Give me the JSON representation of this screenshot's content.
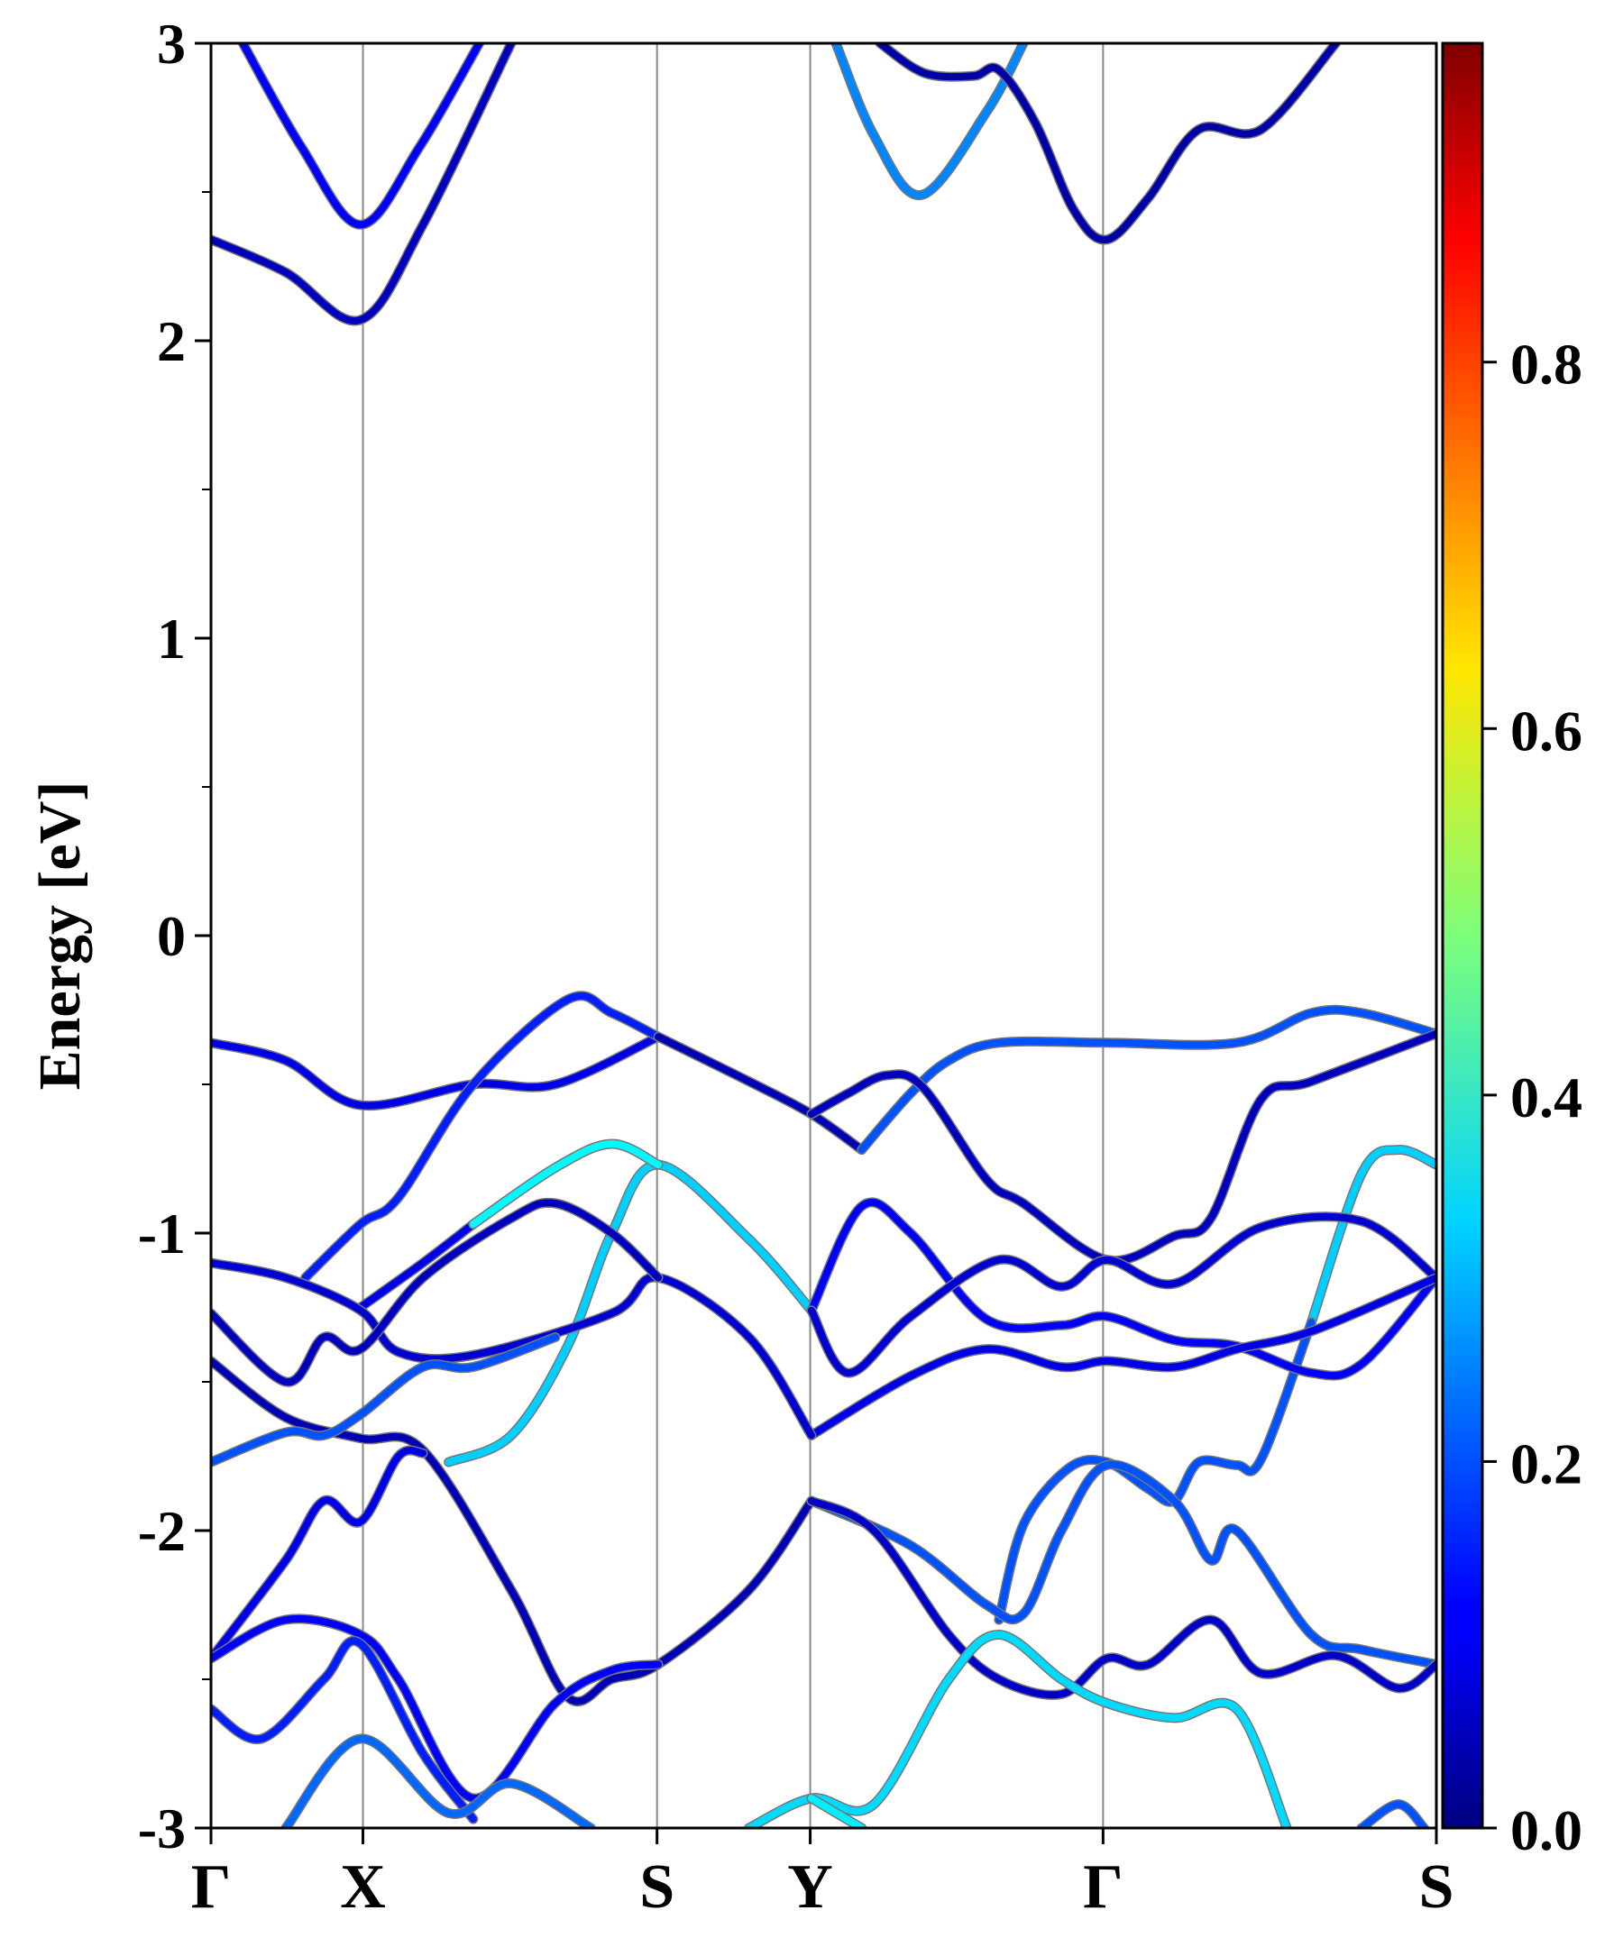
{
  "chart_data": {
    "type": "line",
    "title": "",
    "ylabel": "Energy [eV]",
    "ylim": [
      -3,
      3
    ],
    "yticks": [
      "-3",
      "-2",
      "-1",
      "0",
      "1",
      "2",
      "3"
    ],
    "ytick_values": [
      -3,
      -2,
      -1,
      0,
      1,
      2,
      3
    ],
    "kpoints": [
      {
        "label": "Γ",
        "k": 0
      },
      {
        "label": "X",
        "k": 0.124
      },
      {
        "label": "S",
        "k": 0.364
      },
      {
        "label": "Y",
        "k": 0.489
      },
      {
        "label": "Γ",
        "k": 0.728
      },
      {
        "label": "S",
        "k": 1.0
      }
    ],
    "colorbar": {
      "min": 0.0,
      "max": 0.974,
      "colormap": "jet",
      "ticks": [
        "0.0",
        "0.2",
        "0.4",
        "0.6",
        "0.8"
      ],
      "tick_values": [
        0,
        0.2,
        0.4,
        0.6,
        0.8
      ]
    },
    "bands": [
      {
        "w": 0.12,
        "pts": [
          [
            0.026,
            3
          ],
          [
            0.074,
            2.65
          ],
          [
            0.122,
            2.39
          ],
          [
            0.17,
            2.65
          ],
          [
            0.219,
            3
          ]
        ]
      },
      {
        "w": 0.06,
        "pts": [
          [
            0,
            2.34
          ],
          [
            0.061,
            2.23
          ],
          [
            0.122,
            2.07
          ],
          [
            0.173,
            2.39
          ],
          [
            0.245,
            3
          ]
        ]
      },
      {
        "w": 0.25,
        "pts": [
          [
            0.51,
            3
          ],
          [
            0.541,
            2.69
          ],
          [
            0.58,
            2.49
          ],
          [
            0.633,
            2.77
          ],
          [
            0.663,
            3
          ]
        ]
      },
      {
        "w": 0.04,
        "pts": [
          [
            0.546,
            3
          ],
          [
            0.582,
            2.9
          ],
          [
            0.622,
            2.89
          ],
          [
            0.643,
            2.91
          ],
          [
            0.673,
            2.73
          ],
          [
            0.704,
            2.44
          ],
          [
            0.731,
            2.34
          ],
          [
            0.765,
            2.48
          ],
          [
            0.806,
            2.71
          ],
          [
            0.857,
            2.71
          ],
          [
            0.918,
            3
          ]
        ]
      },
      {
        "w": 0.1,
        "pts": [
          [
            0,
            -0.36
          ],
          [
            0.061,
            -0.42
          ],
          [
            0.122,
            -0.57
          ],
          [
            0.214,
            -0.5
          ],
          [
            0.281,
            -0.5
          ],
          [
            0.365,
            -0.34
          ]
        ]
      },
      {
        "w": 0.15,
        "pts": [
          [
            0.077,
            -1.15
          ],
          [
            0.122,
            -0.97
          ],
          [
            0.153,
            -0.88
          ],
          [
            0.214,
            -0.5
          ],
          [
            0.291,
            -0.215
          ],
          [
            0.327,
            -0.26
          ],
          [
            0.365,
            -0.34
          ]
        ]
      },
      {
        "w": 0.05,
        "pts": [
          [
            0.365,
            -0.34
          ],
          [
            0.439,
            -0.49
          ],
          [
            0.49,
            -0.6
          ],
          [
            0.531,
            -0.72
          ]
        ]
      },
      {
        "w": 0.2,
        "pts": [
          [
            0.531,
            -0.72
          ],
          [
            0.571,
            -0.53
          ],
          [
            0.602,
            -0.42
          ],
          [
            0.643,
            -0.36
          ],
          [
            0.731,
            -0.36
          ],
          [
            0.837,
            -0.36
          ],
          [
            0.898,
            -0.26
          ],
          [
            0.939,
            -0.26
          ],
          [
            1,
            -0.33
          ]
        ]
      },
      {
        "w": 0.06,
        "pts": [
          [
            0.49,
            -0.6
          ],
          [
            0.52,
            -0.53
          ],
          [
            0.551,
            -0.47
          ],
          [
            0.581,
            -0.51
          ],
          [
            0.633,
            -0.82
          ],
          [
            0.663,
            -0.9
          ],
          [
            0.731,
            -1.09
          ],
          [
            0.786,
            -1.01
          ],
          [
            0.816,
            -0.95
          ],
          [
            0.857,
            -0.55
          ],
          [
            0.898,
            -0.49
          ],
          [
            1,
            -0.33
          ]
        ]
      },
      {
        "w": 0.32,
        "pts": [
          [
            0.194,
            -1.77
          ],
          [
            0.245,
            -1.68
          ],
          [
            0.291,
            -1.38
          ],
          [
            0.327,
            -1.0
          ],
          [
            0.365,
            -0.77
          ],
          [
            0.439,
            -1.02
          ],
          [
            0.49,
            -1.26
          ]
        ]
      },
      {
        "w": 0.1,
        "pts": [
          [
            0.122,
            -1.25
          ],
          [
            0.173,
            -1.1
          ],
          [
            0.214,
            -0.97
          ]
        ]
      },
      {
        "w": 0.36,
        "pts": [
          [
            0.214,
            -0.97
          ],
          [
            0.281,
            -0.78
          ],
          [
            0.327,
            -0.7
          ],
          [
            0.365,
            -0.77
          ]
        ]
      },
      {
        "w": 0.32,
        "pts": [
          [
            1,
            -0.77
          ],
          [
            0.969,
            -0.72
          ],
          [
            0.939,
            -0.8
          ],
          [
            0.898,
            -1.3
          ]
        ]
      },
      {
        "w": 0.2,
        "pts": [
          [
            0.898,
            -1.3
          ],
          [
            0.857,
            -1.76
          ],
          [
            0.837,
            -1.78
          ],
          [
            0.806,
            -1.77
          ],
          [
            0.786,
            -1.9
          ],
          [
            0.765,
            -1.86
          ],
          [
            0.731,
            -1.77
          ],
          [
            0.7,
            -1.79
          ],
          [
            0.663,
            -1.98
          ],
          [
            0.643,
            -2.3
          ]
        ]
      },
      {
        "w": 0.12,
        "pts": [
          [
            0.49,
            -1.26
          ],
          [
            0.531,
            -0.91
          ],
          [
            0.571,
            -1.0
          ],
          [
            0.633,
            -1.29
          ],
          [
            0.694,
            -1.31
          ],
          [
            0.731,
            -1.28
          ],
          [
            0.786,
            -1.36
          ],
          [
            0.837,
            -1.38
          ],
          [
            0.898,
            -1.47
          ],
          [
            0.939,
            -1.44
          ],
          [
            1,
            -1.15
          ]
        ]
      },
      {
        "w": 0.08,
        "pts": [
          [
            0.49,
            -1.26
          ],
          [
            0.52,
            -1.47
          ],
          [
            0.571,
            -1.28
          ],
          [
            0.643,
            -1.09
          ],
          [
            0.694,
            -1.18
          ],
          [
            0.731,
            -1.09
          ],
          [
            0.786,
            -1.17
          ],
          [
            0.857,
            -0.98
          ],
          [
            0.939,
            -0.96
          ],
          [
            1,
            -1.15
          ]
        ]
      },
      {
        "w": 0.1,
        "pts": [
          [
            0.49,
            -1.68
          ],
          [
            0.571,
            -1.48
          ],
          [
            0.633,
            -1.39
          ],
          [
            0.694,
            -1.45
          ],
          [
            0.731,
            -1.43
          ],
          [
            0.786,
            -1.45
          ],
          [
            0.837,
            -1.39
          ],
          [
            0.898,
            -1.33
          ],
          [
            1,
            -1.15
          ]
        ]
      },
      {
        "w": 0.08,
        "pts": [
          [
            0,
            -1.1
          ],
          [
            0.061,
            -1.15
          ],
          [
            0.122,
            -1.26
          ],
          [
            0.153,
            -1.4
          ],
          [
            0.214,
            -1.41
          ],
          [
            0.327,
            -1.27
          ],
          [
            0.365,
            -1.15
          ],
          [
            0.439,
            -1.35
          ],
          [
            0.49,
            -1.68
          ]
        ]
      },
      {
        "w": 0.06,
        "pts": [
          [
            0,
            -1.27
          ],
          [
            0.061,
            -1.5
          ],
          [
            0.092,
            -1.35
          ],
          [
            0.122,
            -1.39
          ],
          [
            0.173,
            -1.15
          ],
          [
            0.245,
            -0.95
          ],
          [
            0.281,
            -0.9
          ],
          [
            0.327,
            -1.0
          ],
          [
            0.365,
            -1.15
          ]
        ]
      },
      {
        "w": 0.05,
        "pts": [
          [
            0,
            -1.43
          ],
          [
            0.061,
            -1.62
          ],
          [
            0.122,
            -1.69
          ],
          [
            0.173,
            -1.73
          ],
          [
            0.245,
            -2.2
          ],
          [
            0.291,
            -2.56
          ],
          [
            0.327,
            -2.5
          ],
          [
            0.365,
            -2.45
          ],
          [
            0.439,
            -2.2
          ],
          [
            0.49,
            -1.9
          ]
        ]
      },
      {
        "w": 0.2,
        "pts": [
          [
            0,
            -1.77
          ],
          [
            0.061,
            -1.67
          ],
          [
            0.092,
            -1.68
          ],
          [
            0.122,
            -1.61
          ],
          [
            0.173,
            -1.45
          ],
          [
            0.214,
            -1.45
          ],
          [
            0.281,
            -1.35
          ]
        ]
      },
      {
        "w": 0.1,
        "pts": [
          [
            0,
            -2.43
          ],
          [
            0.061,
            -2.1
          ],
          [
            0.092,
            -1.9
          ],
          [
            0.122,
            -1.97
          ],
          [
            0.153,
            -1.75
          ],
          [
            0.173,
            -1.74
          ]
        ]
      },
      {
        "w": 0.12,
        "pts": [
          [
            0,
            -2.43
          ],
          [
            0.061,
            -2.3
          ],
          [
            0.122,
            -2.35
          ],
          [
            0.153,
            -2.5
          ],
          [
            0.214,
            -2.9
          ],
          [
            0.281,
            -2.58
          ],
          [
            0.327,
            -2.47
          ],
          [
            0.365,
            -2.45
          ]
        ]
      },
      {
        "w": 0.15,
        "pts": [
          [
            0,
            -2.6
          ],
          [
            0.041,
            -2.7
          ],
          [
            0.092,
            -2.5
          ],
          [
            0.122,
            -2.38
          ],
          [
            0.173,
            -2.75
          ],
          [
            0.214,
            -2.97
          ]
        ]
      },
      {
        "w": 0.22,
        "pts": [
          [
            0.061,
            -3
          ],
          [
            0.122,
            -2.7
          ],
          [
            0.194,
            -2.95
          ],
          [
            0.245,
            -2.85
          ],
          [
            0.31,
            -3
          ]
        ]
      },
      {
        "w": 0.2,
        "pts": [
          [
            0.49,
            -1.9
          ],
          [
            0.571,
            -2.05
          ],
          [
            0.633,
            -2.25
          ],
          [
            0.663,
            -2.28
          ],
          [
            0.694,
            -2.0
          ],
          [
            0.731,
            -1.78
          ],
          [
            0.786,
            -1.9
          ],
          [
            0.816,
            -2.1
          ],
          [
            0.837,
            -2.0
          ],
          [
            0.898,
            -2.35
          ],
          [
            0.939,
            -2.4
          ],
          [
            1,
            -2.45
          ]
        ]
      },
      {
        "w": 0.07,
        "pts": [
          [
            0.49,
            -1.9
          ],
          [
            0.541,
            -2.0
          ],
          [
            0.602,
            -2.35
          ],
          [
            0.643,
            -2.5
          ],
          [
            0.694,
            -2.55
          ],
          [
            0.731,
            -2.43
          ],
          [
            0.765,
            -2.45
          ],
          [
            0.816,
            -2.3
          ],
          [
            0.857,
            -2.48
          ],
          [
            0.918,
            -2.42
          ],
          [
            0.969,
            -2.53
          ],
          [
            1,
            -2.45
          ]
        ]
      },
      {
        "w": 0.33,
        "pts": [
          [
            0.439,
            -3
          ],
          [
            0.49,
            -2.9
          ],
          [
            0.541,
            -2.92
          ],
          [
            0.602,
            -2.5
          ],
          [
            0.643,
            -2.35
          ],
          [
            0.694,
            -2.5
          ],
          [
            0.731,
            -2.58
          ],
          [
            0.786,
            -2.63
          ],
          [
            0.837,
            -2.6
          ],
          [
            0.878,
            -3
          ]
        ]
      },
      {
        "w": 0.35,
        "pts": [
          [
            0.49,
            -2.9
          ],
          [
            0.531,
            -3
          ]
        ]
      },
      {
        "w": 0.2,
        "pts": [
          [
            0.939,
            -3
          ],
          [
            0.969,
            -2.92
          ],
          [
            0.99,
            -3
          ]
        ]
      }
    ]
  }
}
